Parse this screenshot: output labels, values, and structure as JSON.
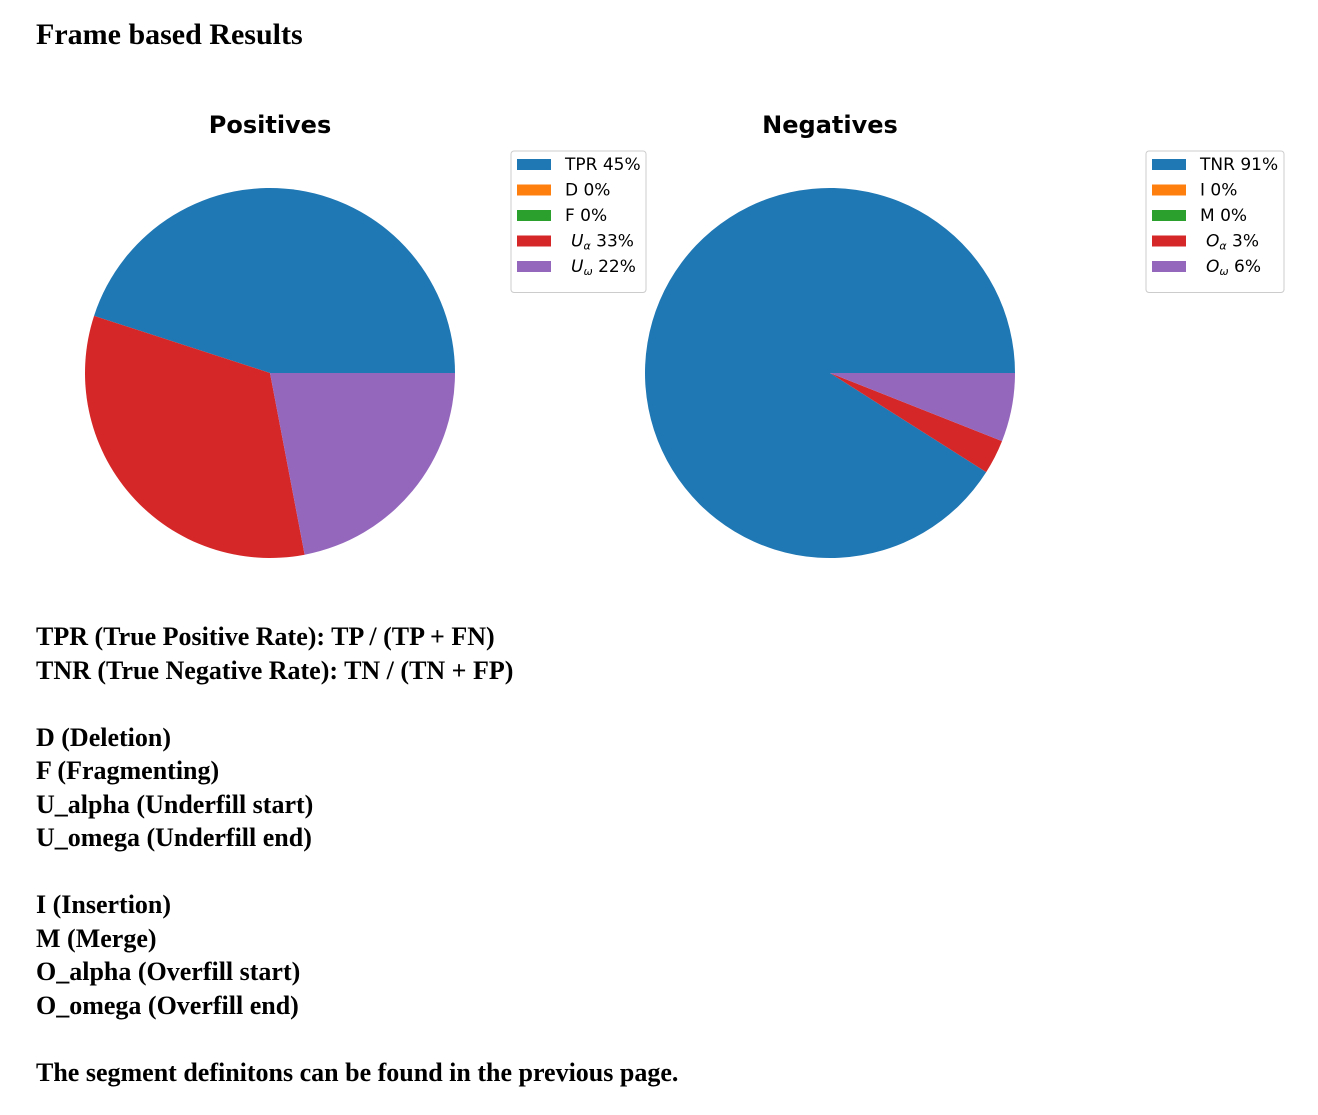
{
  "page": {
    "title": "Frame based Results"
  },
  "chart_data": [
    {
      "type": "pie",
      "title": "Positives",
      "categories": [
        "TPR",
        "D",
        "F",
        "U_alpha",
        "U_omega"
      ],
      "legend_labels": [
        {
          "main": "TPR 45%"
        },
        {
          "main": "D 0%"
        },
        {
          "main": "F 0%"
        },
        {
          "main": "U",
          "sub": "α",
          "suffix": " 33%"
        },
        {
          "main": "U",
          "sub": "ω",
          "suffix": " 22%"
        }
      ],
      "values": [
        45,
        0,
        0,
        33,
        22
      ],
      "colors": [
        "#1f77b4",
        "#ff7f0e",
        "#2ca02c",
        "#d62728",
        "#9467bd"
      ],
      "legend_placement": "upper-right"
    },
    {
      "type": "pie",
      "title": "Negatives",
      "categories": [
        "TNR",
        "I",
        "M",
        "O_alpha",
        "O_omega"
      ],
      "legend_labels": [
        {
          "main": "TNR 91%"
        },
        {
          "main": "I 0%"
        },
        {
          "main": "M 0%"
        },
        {
          "main": "O",
          "sub": "α",
          "suffix": " 3%"
        },
        {
          "main": "O",
          "sub": "ω",
          "suffix": " 6%"
        }
      ],
      "values": [
        91,
        0,
        0,
        3,
        6
      ],
      "colors": [
        "#1f77b4",
        "#ff7f0e",
        "#2ca02c",
        "#d62728",
        "#9467bd"
      ],
      "legend_placement": "upper-right"
    }
  ],
  "definitions": {
    "rates": [
      "TPR (True Positive Rate): TP / (TP + FN)",
      "TNR (True Negative Rate): TN / (TN + FP)"
    ],
    "positive_errors": [
      "D (Deletion)",
      "F (Fragmenting)",
      "U_alpha (Underfill start)",
      "U_omega (Underfill end)"
    ],
    "negative_errors": [
      "I (Insertion)",
      "M (Merge)",
      "O_alpha (Overfill start)",
      "O_omega (Overfill end)"
    ],
    "footer": "The segment definitons can be found in the previous page."
  }
}
